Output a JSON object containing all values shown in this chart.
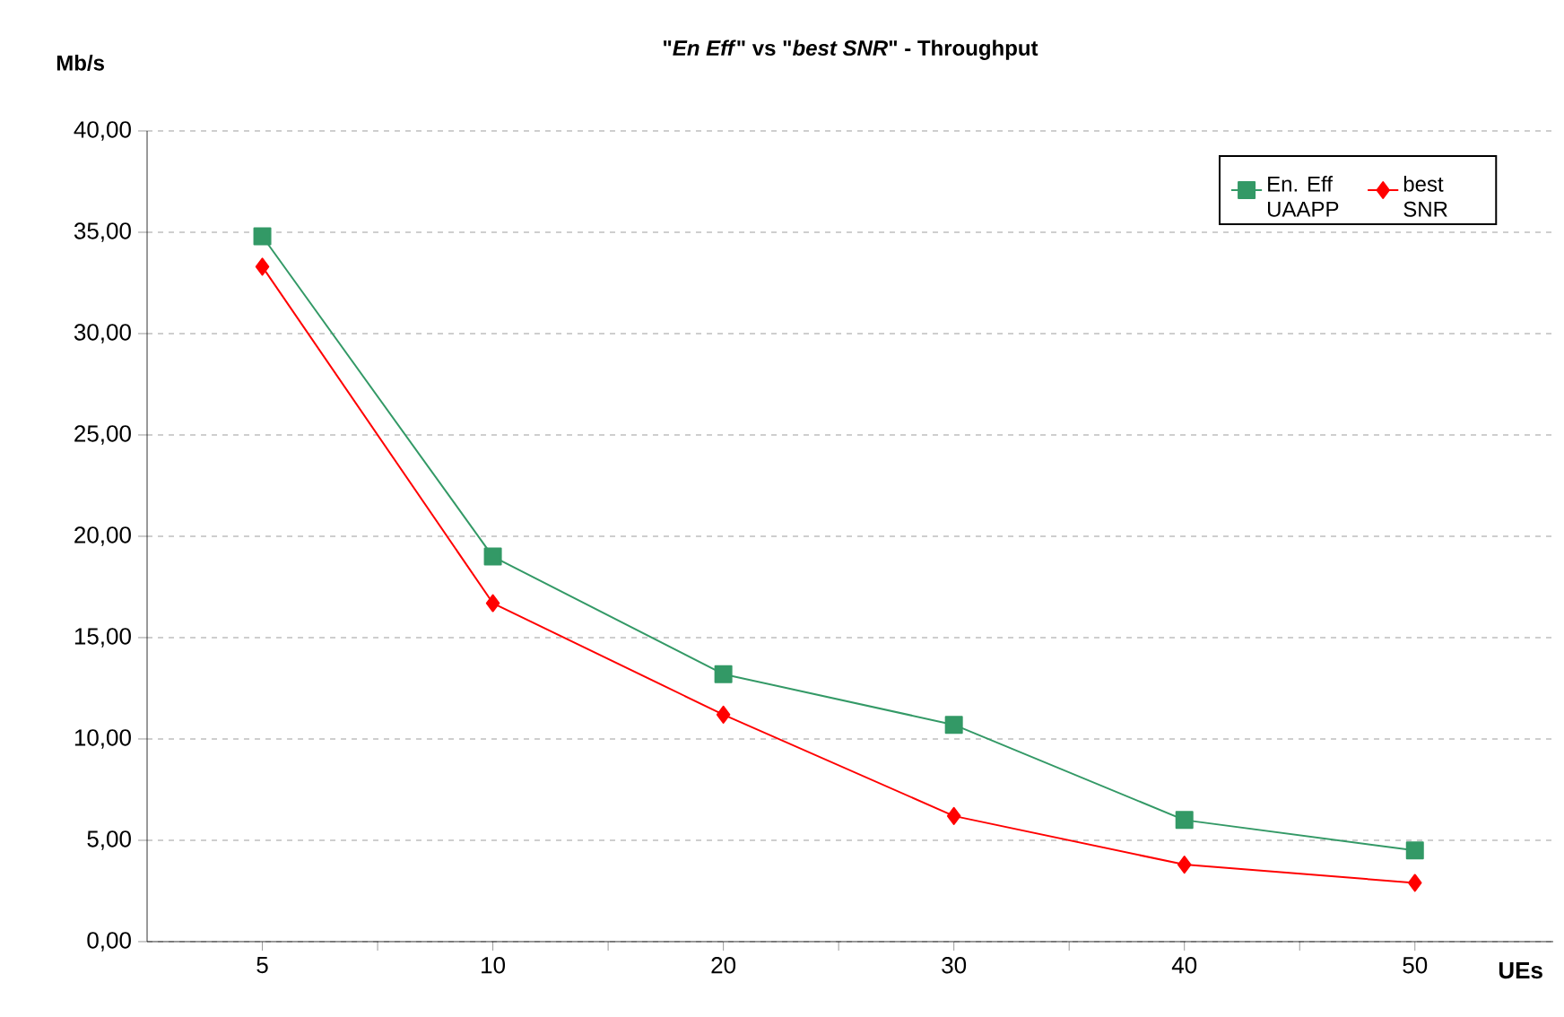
{
  "chart_data": {
    "type": "line",
    "title": "\"*En Eff*\" vs \"*best SNR*\" - Throughput",
    "xlabel": "UEs",
    "ylabel": "Mb/s",
    "categories": [
      "5",
      "10",
      "20",
      "30",
      "40",
      "50"
    ],
    "series": [
      {
        "name": "En. Eff UAAPP",
        "color": "#339966",
        "marker": "square",
        "values": [
          34.8,
          19.0,
          13.2,
          10.7,
          6.0,
          4.5
        ]
      },
      {
        "name": "best SNR",
        "color": "#ff0000",
        "marker": "diamond",
        "values": [
          33.3,
          16.7,
          11.2,
          6.2,
          3.8,
          2.9
        ]
      }
    ],
    "ylim": [
      0,
      40
    ],
    "yticks": [
      {
        "value": 0,
        "label": "0,00"
      },
      {
        "value": 5,
        "label": "5,00"
      },
      {
        "value": 10,
        "label": "10,00"
      },
      {
        "value": 15,
        "label": "15,00"
      },
      {
        "value": 20,
        "label": "20,00"
      },
      {
        "value": 25,
        "label": "25,00"
      },
      {
        "value": 30,
        "label": "30,00"
      },
      {
        "value": 35,
        "label": "35,00"
      },
      {
        "value": 40,
        "label": "40,00"
      }
    ],
    "grid": "y",
    "legend": "top right",
    "line_style": "solid"
  }
}
